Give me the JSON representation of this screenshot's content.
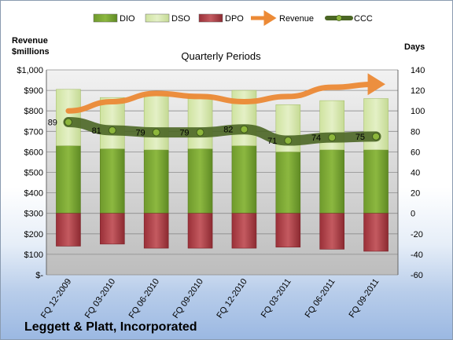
{
  "company": "Leggett & Platt, Incorporated",
  "colors": {
    "dio": "#6f9a2c",
    "dso": "#d4e6a8",
    "dpo": "#a63c43",
    "revenue": "#ec8a36",
    "ccc": "#4b6625",
    "ccc_marker": "#8db63c"
  },
  "chart_data": {
    "type": "bar",
    "title": "Quarterly Periods",
    "categories": [
      "FQ 12-2009",
      "FQ 03-2010",
      "FQ 06-2010",
      "FQ 09-2010",
      "FQ 12-2010",
      "FQ 03-2011",
      "FQ 06-2011",
      "FQ 09-2011"
    ],
    "left_axis": {
      "label": "Revenue\n$millions",
      "range": [
        0,
        1000
      ],
      "ticks": [
        "$-",
        "$100",
        "$200",
        "$300",
        "$400",
        "$500",
        "$600",
        "$700",
        "$800",
        "$900",
        "$1,000"
      ]
    },
    "right_axis": {
      "label": "Days",
      "range": [
        -60,
        140
      ],
      "ticks": [
        "-60",
        "-40",
        "-20",
        "0",
        "20",
        "40",
        "60",
        "80",
        "100",
        "120",
        "140"
      ]
    },
    "series": [
      {
        "name": "DIO",
        "axis": "right",
        "kind": "stacked-bar",
        "values": [
          66,
          63,
          62,
          63,
          66,
          60,
          62,
          62
        ]
      },
      {
        "name": "DSO",
        "axis": "right",
        "kind": "stacked-bar",
        "values": [
          55,
          50,
          54,
          52,
          54,
          46,
          48,
          50
        ]
      },
      {
        "name": "DPO",
        "axis": "right",
        "kind": "stacked-bar-negative",
        "values": [
          -32,
          -30,
          -34,
          -34,
          -34,
          -33,
          -35,
          -37
        ]
      },
      {
        "name": "Revenue",
        "axis": "left",
        "kind": "arrow-line",
        "values": [
          800,
          845,
          885,
          870,
          845,
          870,
          915,
          930
        ]
      },
      {
        "name": "CCC",
        "axis": "right",
        "kind": "line",
        "values": [
          89,
          81,
          79,
          79,
          82,
          71,
          74,
          75
        ],
        "labels": [
          "89",
          "81",
          "79",
          "79",
          "82",
          "71",
          "74",
          "75"
        ]
      }
    ],
    "grid": true,
    "legend": "top"
  }
}
